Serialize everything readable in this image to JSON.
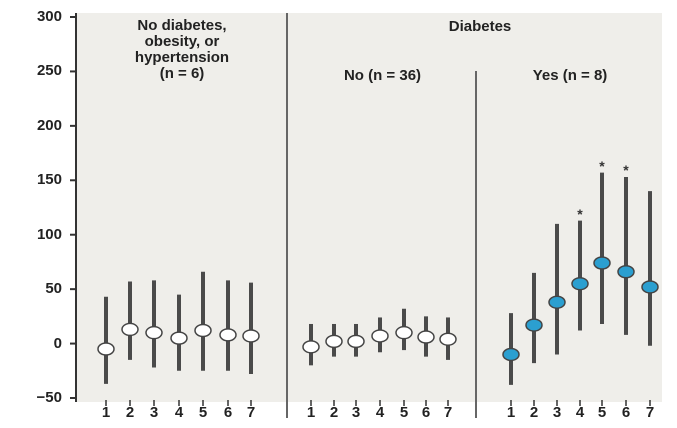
{
  "chart_data": {
    "type": "scatter",
    "y_ticks": [
      "300",
      "250",
      "200",
      "150",
      "100",
      "50",
      "0",
      "−50"
    ],
    "ylim": [
      -50,
      300
    ],
    "groups": [
      {
        "header": "No diabetes, obesity, or hypertension (n = 6)",
        "header_lines": [
          "No diabetes,",
          "obesity, or",
          "hypertension",
          "(n = 6)"
        ],
        "marker_color": "#ffffff",
        "categories": [
          "1",
          "2",
          "3",
          "4",
          "5",
          "6",
          "7"
        ],
        "mean": [
          -5,
          13,
          10,
          5,
          12,
          8,
          7
        ],
        "lower": [
          -37,
          -15,
          -22,
          -25,
          -25,
          -25,
          -28
        ],
        "upper": [
          43,
          57,
          58,
          45,
          66,
          58,
          56
        ],
        "significant": [
          false,
          false,
          false,
          false,
          false,
          false,
          false
        ]
      },
      {
        "header": "No (n = 36)",
        "header_lines": [
          "No (n = 36)"
        ],
        "marker_color": "#ffffff",
        "categories": [
          "1",
          "2",
          "3",
          "4",
          "5",
          "6",
          "7"
        ],
        "mean": [
          -3,
          2,
          2,
          7,
          10,
          6,
          4
        ],
        "lower": [
          -20,
          -12,
          -12,
          -8,
          -6,
          -12,
          -15
        ],
        "upper": [
          18,
          18,
          18,
          24,
          32,
          25,
          24
        ],
        "significant": [
          false,
          false,
          false,
          false,
          false,
          false,
          false
        ]
      },
      {
        "header": "Yes (n = 8)",
        "header_lines": [
          "Yes (n = 8)"
        ],
        "marker_color": "#2b9fd0",
        "categories": [
          "1",
          "2",
          "3",
          "4",
          "5",
          "6",
          "7"
        ],
        "mean": [
          -10,
          17,
          38,
          55,
          74,
          66,
          52
        ],
        "lower": [
          -38,
          -18,
          -10,
          12,
          18,
          8,
          -2
        ],
        "upper": [
          28,
          65,
          110,
          113,
          157,
          153,
          140
        ],
        "significant": [
          false,
          false,
          false,
          true,
          true,
          true,
          false
        ]
      }
    ],
    "super_header": "Diabetes",
    "significance_marker": "*",
    "grid": false
  }
}
